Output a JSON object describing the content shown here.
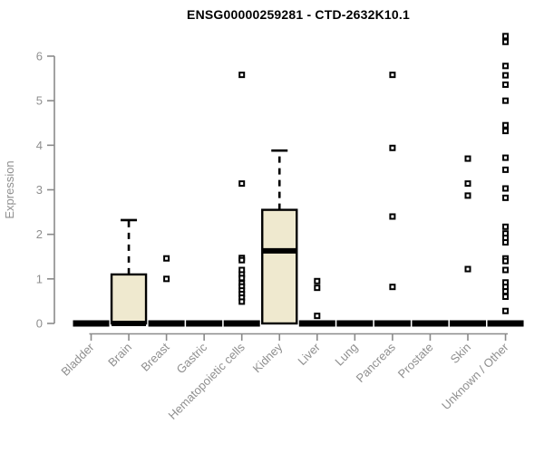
{
  "title": "ENSG00000259281 - CTD-2632K10.1",
  "colors": {
    "background": "#ffffff",
    "box_fill": "#efe9cf",
    "box_stroke": "#000000",
    "median": "#000000",
    "outlier": "#000000",
    "axis_line": "#8a8a8a",
    "tick_label": "#8f8f8f",
    "title": "#000000"
  },
  "chart_data": {
    "type": "boxplot",
    "title": "ENSG00000259281 - CTD-2632K10.1",
    "xlabel": "",
    "ylabel": "Expression",
    "ylim": [
      0,
      6
    ],
    "yticks": [
      0,
      1,
      2,
      3,
      4,
      5,
      6
    ],
    "grid": false,
    "legend": false,
    "marker": "open-square",
    "categories": [
      "Bladder",
      "Brain",
      "Breast",
      "Gastric",
      "Hematopoietic cells",
      "Kidney",
      "Liver",
      "Lung",
      "Pancreas",
      "Prostate",
      "Skin",
      "Unknown / Other"
    ],
    "series": [
      {
        "category": "Bladder",
        "q1": 0,
        "median": 0,
        "q3": 0,
        "whisker_low": 0,
        "whisker_high": 0,
        "outliers": []
      },
      {
        "category": "Brain",
        "q1": 0,
        "median": 0,
        "q3": 1.1,
        "whisker_low": 0,
        "whisker_high": 2.32,
        "outliers": []
      },
      {
        "category": "Breast",
        "q1": 0,
        "median": 0,
        "q3": 0,
        "whisker_low": 0,
        "whisker_high": 0,
        "outliers": [
          1.46,
          1.0
        ]
      },
      {
        "category": "Gastric",
        "q1": 0,
        "median": 0,
        "q3": 0,
        "whisker_low": 0,
        "whisker_high": 0,
        "outliers": []
      },
      {
        "category": "Hematopoietic cells",
        "q1": 0,
        "median": 0,
        "q3": 0,
        "whisker_low": 0,
        "whisker_high": 0,
        "outliers": [
          5.58,
          3.14,
          1.47,
          1.42,
          1.2,
          1.1,
          1.02,
          0.9,
          0.83,
          0.74,
          0.66,
          0.58,
          0.49
        ]
      },
      {
        "category": "Kidney",
        "q1": 0,
        "median": 1.63,
        "q3": 2.55,
        "whisker_low": 0,
        "whisker_high": 3.88,
        "outliers": []
      },
      {
        "category": "Liver",
        "q1": 0,
        "median": 0,
        "q3": 0,
        "whisker_low": 0,
        "whisker_high": 0,
        "outliers": [
          0.95,
          0.8,
          0.17
        ]
      },
      {
        "category": "Lung",
        "q1": 0,
        "median": 0,
        "q3": 0,
        "whisker_low": 0,
        "whisker_high": 0,
        "outliers": []
      },
      {
        "category": "Pancreas",
        "q1": 0,
        "median": 0,
        "q3": 0,
        "whisker_low": 0,
        "whisker_high": 0,
        "outliers": [
          5.58,
          3.94,
          2.4,
          0.82
        ]
      },
      {
        "category": "Prostate",
        "q1": 0,
        "median": 0,
        "q3": 0,
        "whisker_low": 0,
        "whisker_high": 0,
        "outliers": []
      },
      {
        "category": "Skin",
        "q1": 0,
        "median": 0,
        "q3": 0,
        "whisker_low": 0,
        "whisker_high": 0,
        "outliers": [
          3.7,
          3.14,
          2.87,
          1.22
        ]
      },
      {
        "category": "Unknown / Other",
        "q1": 0,
        "median": 0,
        "q3": 0,
        "whisker_low": 0,
        "whisker_high": 0,
        "outliers": [
          6.45,
          6.32,
          5.78,
          5.57,
          5.36,
          5.0,
          4.45,
          4.32,
          3.72,
          3.45,
          3.03,
          2.82,
          2.17,
          2.02,
          1.92,
          1.82,
          1.46,
          1.4,
          1.2,
          0.92,
          0.82,
          0.72,
          0.6,
          0.28
        ]
      }
    ]
  }
}
